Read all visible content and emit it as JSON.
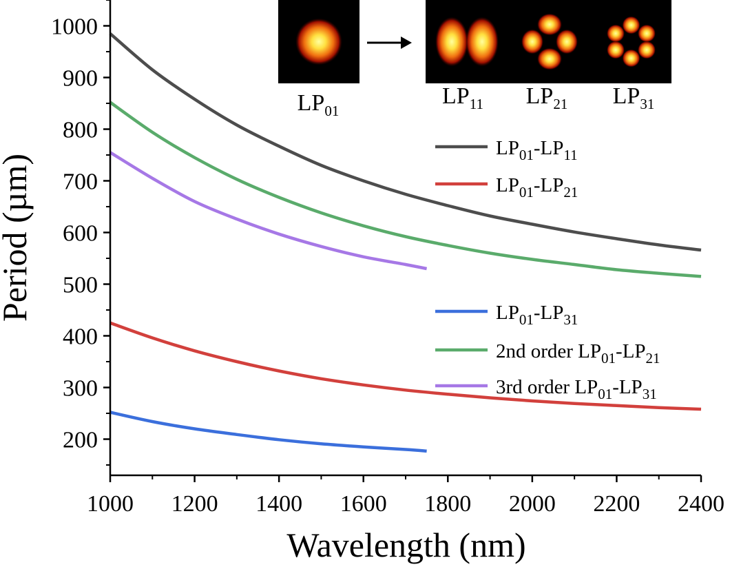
{
  "chart_data": {
    "type": "line",
    "xlabel": "Wavelength (nm)",
    "ylabel": "Period (µm)",
    "xlim": [
      1000,
      2400
    ],
    "ylim": [
      130,
      1050
    ],
    "x_ticks": [
      1000,
      1200,
      1400,
      1600,
      1800,
      2000,
      2200,
      2400
    ],
    "y_ticks": [
      200,
      300,
      400,
      500,
      600,
      700,
      800,
      900,
      1000
    ],
    "x_tick_labels": [
      "1000",
      "1200",
      "1400",
      "1600",
      "1800",
      "2000",
      "2200",
      "2400"
    ],
    "y_tick_labels": [
      "200",
      "300",
      "400",
      "500",
      "600",
      "700",
      "800",
      "900",
      "1000"
    ],
    "grid": false,
    "legend_position": "right",
    "series": [
      {
        "name": "LP01-LP11",
        "name_main": "LP",
        "name_parts": [
          {
            "sub": "01"
          },
          {
            "text": "-LP"
          },
          {
            "sub": "11"
          }
        ],
        "color": "#4d4d4d",
        "x": [
          1000,
          1100,
          1200,
          1300,
          1400,
          1500,
          1600,
          1700,
          1800,
          1900,
          2000,
          2100,
          2200,
          2300,
          2400
        ],
        "y": [
          985,
          915,
          858,
          808,
          767,
          730,
          700,
          674,
          652,
          632,
          616,
          601,
          588,
          576,
          566
        ]
      },
      {
        "name": "LP01-LP21",
        "name_main": "LP",
        "name_parts": [
          {
            "sub": "01"
          },
          {
            "text": "-LP"
          },
          {
            "sub": "21"
          }
        ],
        "color": "#d2403c",
        "x": [
          1000,
          1100,
          1200,
          1300,
          1400,
          1500,
          1600,
          1700,
          1800,
          1900,
          2000,
          2100,
          2200,
          2300,
          2400
        ],
        "y": [
          425,
          396,
          371,
          350,
          332,
          317,
          305,
          295,
          287,
          280,
          274,
          269,
          265,
          261,
          258
        ]
      },
      {
        "name": "LP01-LP31",
        "name_main": "LP",
        "name_parts": [
          {
            "sub": "01"
          },
          {
            "text": "-LP"
          },
          {
            "sub": "31"
          }
        ],
        "color": "#3b6fdc",
        "x": [
          1000,
          1100,
          1200,
          1300,
          1400,
          1500,
          1600,
          1700,
          1750
        ],
        "y": [
          252,
          234,
          220,
          209,
          199,
          191,
          185,
          180,
          177
        ]
      },
      {
        "name": "2nd order LP01-LP21",
        "name_main": "2nd order LP",
        "name_parts": [
          {
            "sub": "01"
          },
          {
            "text": "-LP"
          },
          {
            "sub": "21"
          }
        ],
        "color": "#5aab6b",
        "x": [
          1000,
          1100,
          1200,
          1300,
          1400,
          1500,
          1600,
          1700,
          1800,
          1900,
          2000,
          2100,
          2200,
          2300,
          2400
        ],
        "y": [
          852,
          794,
          745,
          703,
          668,
          638,
          613,
          592,
          575,
          560,
          548,
          538,
          528,
          521,
          515
        ]
      },
      {
        "name": "3rd order LP01-LP31",
        "name_main": "3rd order LP",
        "name_parts": [
          {
            "sub": "01"
          },
          {
            "text": "-LP"
          },
          {
            "sub": "31"
          }
        ],
        "color": "#a678e6",
        "x": [
          1000,
          1100,
          1200,
          1300,
          1400,
          1500,
          1600,
          1700,
          1750
        ],
        "y": [
          755,
          705,
          660,
          626,
          597,
          573,
          553,
          538,
          530
        ]
      }
    ],
    "insets": [
      {
        "name": "LP01",
        "main": "LP",
        "sub": "01",
        "lobes": 1
      },
      {
        "name": "LP11",
        "main": "LP",
        "sub": "11",
        "lobes": 2
      },
      {
        "name": "LP21",
        "main": "LP",
        "sub": "21",
        "lobes": 4
      },
      {
        "name": "LP31",
        "main": "LP",
        "sub": "31",
        "lobes": 6
      }
    ]
  }
}
